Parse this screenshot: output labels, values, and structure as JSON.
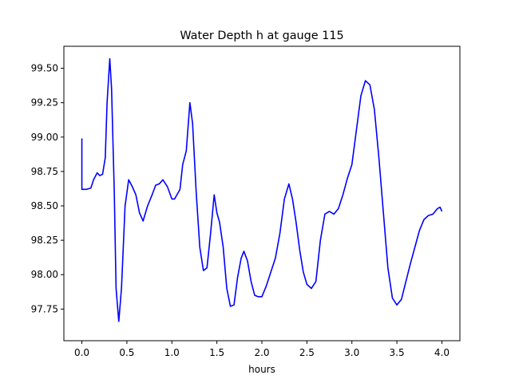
{
  "chart_data": {
    "type": "line",
    "title": "Water Depth h at gauge 115",
    "xlabel": "hours",
    "ylabel": "",
    "xlim": [
      -0.2,
      4.2
    ],
    "ylim": [
      97.52,
      99.66
    ],
    "x_ticks": [
      0.0,
      0.5,
      1.0,
      1.5,
      2.0,
      2.5,
      3.0,
      3.5,
      4.0
    ],
    "x_tick_labels": [
      "0.0",
      "0.5",
      "1.0",
      "1.5",
      "2.0",
      "2.5",
      "3.0",
      "3.5",
      "4.0"
    ],
    "y_ticks": [
      97.75,
      98.0,
      98.25,
      98.5,
      98.75,
      99.0,
      99.25,
      99.5
    ],
    "y_tick_labels": [
      "97.75",
      "98.00",
      "98.25",
      "98.50",
      "98.75",
      "99.00",
      "99.25",
      "99.50"
    ],
    "grid": false,
    "legend": "none",
    "series": [
      {
        "color": "#0000ff",
        "points": [
          [
            0.0,
            98.99
          ],
          [
            0.0,
            98.62
          ],
          [
            0.05,
            98.62
          ],
          [
            0.1,
            98.63
          ],
          [
            0.13,
            98.69
          ],
          [
            0.17,
            98.74
          ],
          [
            0.2,
            98.72
          ],
          [
            0.23,
            98.73
          ],
          [
            0.26,
            98.85
          ],
          [
            0.28,
            99.25
          ],
          [
            0.31,
            99.57
          ],
          [
            0.33,
            99.35
          ],
          [
            0.36,
            98.6
          ],
          [
            0.38,
            97.9
          ],
          [
            0.41,
            97.66
          ],
          [
            0.44,
            97.9
          ],
          [
            0.48,
            98.5
          ],
          [
            0.52,
            98.69
          ],
          [
            0.56,
            98.64
          ],
          [
            0.6,
            98.58
          ],
          [
            0.64,
            98.45
          ],
          [
            0.68,
            98.39
          ],
          [
            0.73,
            98.5
          ],
          [
            0.78,
            98.58
          ],
          [
            0.82,
            98.65
          ],
          [
            0.86,
            98.66
          ],
          [
            0.9,
            98.69
          ],
          [
            0.95,
            98.64
          ],
          [
            1.0,
            98.55
          ],
          [
            1.03,
            98.55
          ],
          [
            1.09,
            98.62
          ],
          [
            1.12,
            98.8
          ],
          [
            1.16,
            98.9
          ],
          [
            1.2,
            99.25
          ],
          [
            1.23,
            99.1
          ],
          [
            1.27,
            98.6
          ],
          [
            1.31,
            98.2
          ],
          [
            1.35,
            98.03
          ],
          [
            1.39,
            98.05
          ],
          [
            1.43,
            98.3
          ],
          [
            1.47,
            98.58
          ],
          [
            1.5,
            98.45
          ],
          [
            1.53,
            98.38
          ],
          [
            1.57,
            98.2
          ],
          [
            1.61,
            97.9
          ],
          [
            1.65,
            97.77
          ],
          [
            1.69,
            97.78
          ],
          [
            1.73,
            97.98
          ],
          [
            1.77,
            98.12
          ],
          [
            1.8,
            98.17
          ],
          [
            1.84,
            98.1
          ],
          [
            1.88,
            97.95
          ],
          [
            1.92,
            97.85
          ],
          [
            1.96,
            97.84
          ],
          [
            2.0,
            97.84
          ],
          [
            2.05,
            97.92
          ],
          [
            2.1,
            98.02
          ],
          [
            2.15,
            98.12
          ],
          [
            2.2,
            98.3
          ],
          [
            2.25,
            98.55
          ],
          [
            2.3,
            98.66
          ],
          [
            2.34,
            98.55
          ],
          [
            2.38,
            98.38
          ],
          [
            2.42,
            98.18
          ],
          [
            2.46,
            98.02
          ],
          [
            2.5,
            97.93
          ],
          [
            2.55,
            97.9
          ],
          [
            2.6,
            97.95
          ],
          [
            2.65,
            98.25
          ],
          [
            2.7,
            98.44
          ],
          [
            2.75,
            98.46
          ],
          [
            2.8,
            98.44
          ],
          [
            2.85,
            98.48
          ],
          [
            2.9,
            98.58
          ],
          [
            2.95,
            98.7
          ],
          [
            3.0,
            98.8
          ],
          [
            3.05,
            99.05
          ],
          [
            3.1,
            99.3
          ],
          [
            3.15,
            99.41
          ],
          [
            3.2,
            99.38
          ],
          [
            3.25,
            99.2
          ],
          [
            3.3,
            98.85
          ],
          [
            3.35,
            98.45
          ],
          [
            3.4,
            98.05
          ],
          [
            3.45,
            97.83
          ],
          [
            3.5,
            97.78
          ],
          [
            3.55,
            97.82
          ],
          [
            3.6,
            97.95
          ],
          [
            3.65,
            98.08
          ],
          [
            3.7,
            98.2
          ],
          [
            3.75,
            98.32
          ],
          [
            3.8,
            98.4
          ],
          [
            3.85,
            98.43
          ],
          [
            3.9,
            98.44
          ],
          [
            3.95,
            98.48
          ],
          [
            3.98,
            98.49
          ],
          [
            4.0,
            98.46
          ]
        ]
      }
    ]
  }
}
